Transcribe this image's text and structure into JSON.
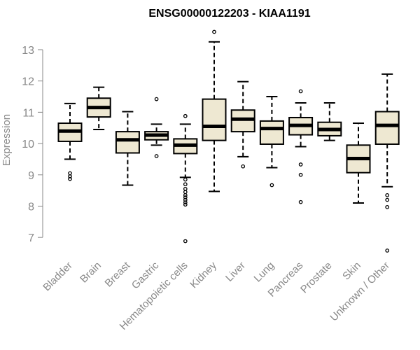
{
  "chart_data": {
    "type": "boxplot",
    "title": "ENSG00000122203 - KIAA1191",
    "xlabel": "",
    "ylabel": "Expression",
    "ylim": [
      6.4,
      13.6
    ],
    "yticks": [
      7,
      8,
      9,
      10,
      11,
      12,
      13
    ],
    "box_fill": "#eee8d2",
    "categories": [
      "Bladder",
      "Brain",
      "Breast",
      "Gastric",
      "Hematopoietic cells",
      "Kidney",
      "Liver",
      "Lung",
      "Pancreas",
      "Prostate",
      "Skin",
      "Unknown / Other"
    ],
    "series": [
      {
        "name": "Bladder",
        "whisker_low": 9.5,
        "q1": 10.07,
        "median": 10.4,
        "q3": 10.65,
        "whisker_high": 11.28,
        "outliers": [
          9.05,
          8.95,
          8.87
        ]
      },
      {
        "name": "Brain",
        "whisker_low": 10.45,
        "q1": 10.85,
        "median": 11.15,
        "q3": 11.45,
        "whisker_high": 11.8,
        "outliers": []
      },
      {
        "name": "Breast",
        "whisker_low": 8.67,
        "q1": 9.7,
        "median": 10.12,
        "q3": 10.38,
        "whisker_high": 11.02,
        "outliers": []
      },
      {
        "name": "Gastric",
        "whisker_low": 9.95,
        "q1": 10.12,
        "median": 10.27,
        "q3": 10.38,
        "whisker_high": 10.62,
        "outliers": [
          11.42,
          9.6
        ]
      },
      {
        "name": "Hematopoietic cells",
        "whisker_low": 8.92,
        "q1": 9.68,
        "median": 9.95,
        "q3": 10.15,
        "whisker_high": 10.62,
        "outliers": [
          10.88,
          8.85,
          8.7,
          8.55,
          8.45,
          8.35,
          8.28,
          8.2,
          8.12,
          8.05,
          6.88
        ]
      },
      {
        "name": "Kidney",
        "whisker_low": 8.47,
        "q1": 10.1,
        "median": 10.55,
        "q3": 11.42,
        "whisker_high": 13.25,
        "outliers": [
          13.57
        ]
      },
      {
        "name": "Liver",
        "whisker_low": 9.58,
        "q1": 10.38,
        "median": 10.78,
        "q3": 11.07,
        "whisker_high": 11.98,
        "outliers": [
          9.27
        ]
      },
      {
        "name": "Lung",
        "whisker_low": 9.23,
        "q1": 9.98,
        "median": 10.48,
        "q3": 10.72,
        "whisker_high": 11.5,
        "outliers": [
          8.67
        ]
      },
      {
        "name": "Pancreas",
        "whisker_low": 9.9,
        "q1": 10.28,
        "median": 10.58,
        "q3": 10.83,
        "whisker_high": 11.3,
        "outliers": [
          11.67,
          9.33,
          9.0,
          8.13
        ]
      },
      {
        "name": "Prostate",
        "whisker_low": 10.1,
        "q1": 10.25,
        "median": 10.45,
        "q3": 10.68,
        "whisker_high": 11.3,
        "outliers": []
      },
      {
        "name": "Skin",
        "whisker_low": 8.1,
        "q1": 9.07,
        "median": 9.52,
        "q3": 9.95,
        "whisker_high": 10.65,
        "outliers": []
      },
      {
        "name": "Unknown / Other",
        "whisker_low": 8.62,
        "q1": 9.98,
        "median": 10.58,
        "q3": 11.02,
        "whisker_high": 12.22,
        "outliers": [
          8.35,
          8.2,
          7.97,
          6.58
        ]
      }
    ]
  }
}
